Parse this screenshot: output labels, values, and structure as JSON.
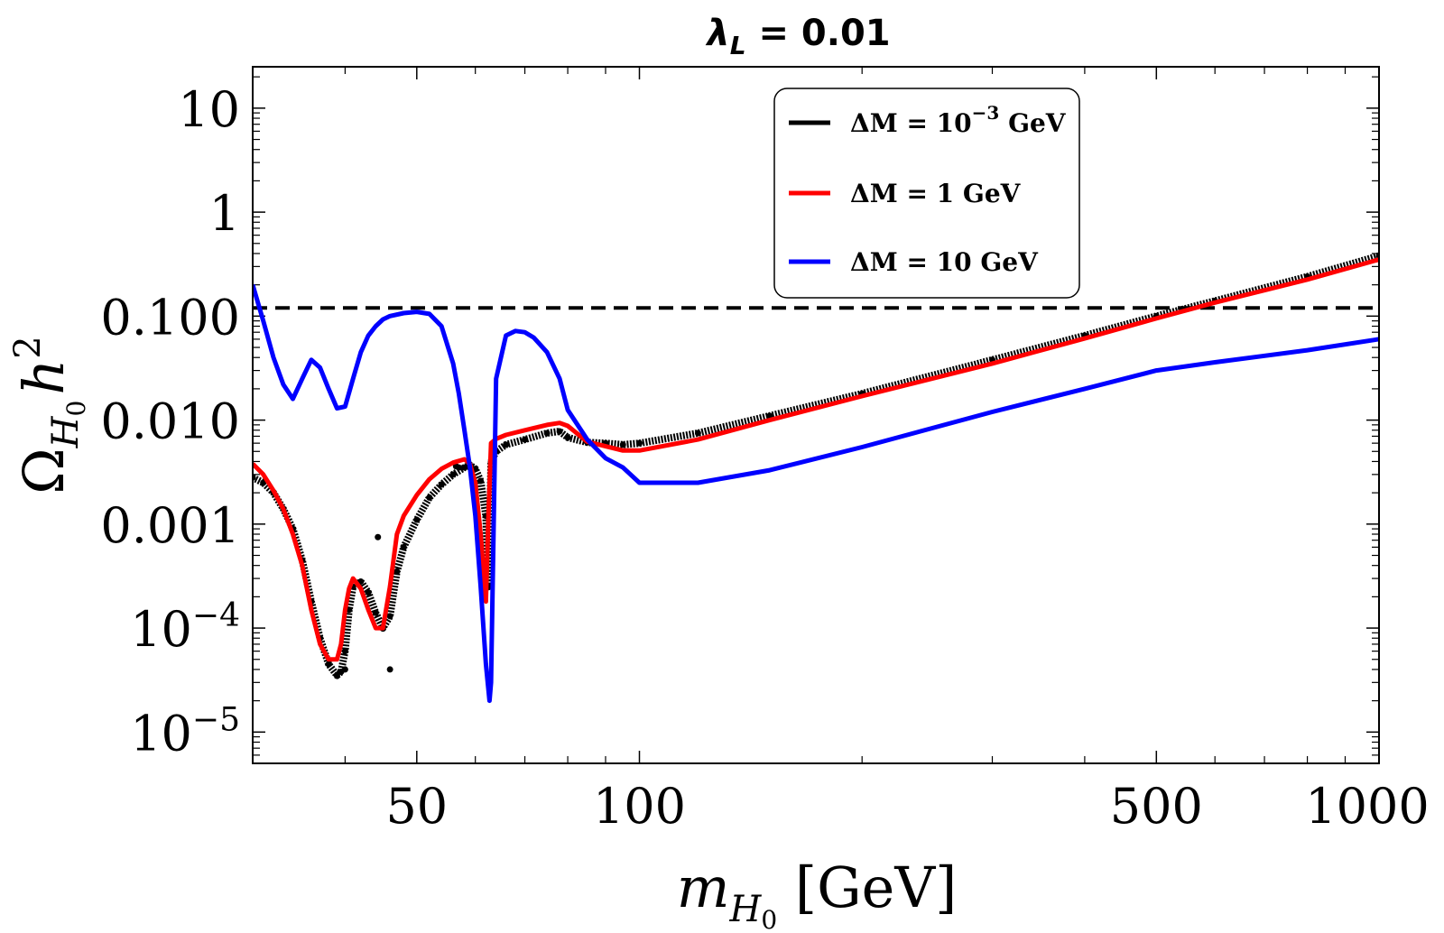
{
  "chart_data": {
    "type": "line",
    "title": {
      "symbol": "λ",
      "subscript": "L",
      "rest": " = 0.01"
    },
    "xlabel": {
      "symbol": "m",
      "subscript": "H",
      "subsub": "0",
      "unit": " [GeV]"
    },
    "ylabel": {
      "symbol": "Ω",
      "subscript": "H",
      "subsub": "0",
      "h": "h",
      "power": "2"
    },
    "xscale": "log",
    "yscale": "log",
    "xlim": [
      30,
      1000
    ],
    "ylim": [
      5e-06,
      25
    ],
    "x_ticks": [
      {
        "value": 50,
        "label": "50"
      },
      {
        "value": 100,
        "label": "100"
      },
      {
        "value": 500,
        "label": "500"
      },
      {
        "value": 1000,
        "label": "1000"
      }
    ],
    "y_ticks": [
      {
        "value": 1e-05,
        "label_base": "10",
        "label_exp": "−5"
      },
      {
        "value": 0.0001,
        "label_base": "10",
        "label_exp": "−4"
      },
      {
        "value": 0.001,
        "label": "0.001"
      },
      {
        "value": 0.01,
        "label": "0.010"
      },
      {
        "value": 0.1,
        "label": "0.100"
      },
      {
        "value": 1,
        "label": "1"
      },
      {
        "value": 10,
        "label": "10"
      }
    ],
    "reference_line": {
      "name": "relic-density",
      "y": 0.12,
      "style": "dashed",
      "color": "#000000"
    },
    "legend": {
      "position": "top-right",
      "entries": [
        {
          "series": "dm-1e-3",
          "prefix": "ΔM = 10",
          "sup": "−3",
          "suffix": " GeV",
          "color": "#000000"
        },
        {
          "series": "dm-1",
          "prefix": "ΔM = 1 GeV",
          "sup": "",
          "suffix": "",
          "color": "#ff0000"
        },
        {
          "series": "dm-10",
          "prefix": "ΔM = 10 GeV",
          "sup": "",
          "suffix": "",
          "color": "#0000ff"
        }
      ]
    },
    "series": [
      {
        "name": "dm-1e-3",
        "color": "#000000",
        "style": "points-dense",
        "x": [
          30,
          31,
          32,
          33,
          34,
          35,
          36,
          37,
          38,
          39,
          39.5,
          40,
          40.5,
          41,
          42,
          43,
          44,
          45,
          46,
          47,
          48,
          50,
          52,
          54,
          56,
          58,
          59,
          60,
          61,
          62,
          62.5,
          63,
          64,
          66,
          70,
          75,
          78,
          80,
          85,
          90,
          95,
          100,
          120,
          150,
          200,
          300,
          400,
          500,
          600,
          800,
          1000
        ],
        "values": [
          0.0028,
          0.0025,
          0.002,
          0.0014,
          0.0009,
          0.00045,
          0.00018,
          8e-05,
          4.5e-05,
          3.5e-05,
          3.8e-05,
          6e-05,
          0.00015,
          0.00025,
          0.00028,
          0.00022,
          0.00014,
          0.0001,
          0.00013,
          0.00035,
          0.0006,
          0.0011,
          0.0018,
          0.0024,
          0.003,
          0.0035,
          0.0037,
          0.0034,
          0.0026,
          0.0012,
          0.00025,
          0.004,
          0.005,
          0.0058,
          0.0065,
          0.0075,
          0.0078,
          0.0068,
          0.0061,
          0.006,
          0.0058,
          0.006,
          0.0075,
          0.011,
          0.018,
          0.038,
          0.065,
          0.1,
          0.14,
          0.24,
          0.38
        ]
      },
      {
        "name": "dm-1e-3-scatter",
        "color": "#000000",
        "style": "points",
        "x": [
          44.3,
          46,
          40,
          56.5,
          57
        ],
        "values": [
          0.00075,
          4e-05,
          4e-05,
          0.0036,
          0.0035
        ]
      },
      {
        "name": "dm-1",
        "color": "#ff0000",
        "style": "line",
        "x": [
          30,
          31,
          32,
          33,
          34,
          35,
          36,
          37,
          38,
          39,
          39.5,
          40,
          40.5,
          41,
          42,
          43,
          44,
          45,
          46,
          47,
          48,
          50,
          52,
          54,
          56,
          58,
          59,
          60,
          61,
          62,
          62.5,
          63,
          64,
          66,
          70,
          75,
          78,
          80,
          85,
          90,
          95,
          100,
          120,
          150,
          200,
          300,
          400,
          500,
          600,
          800,
          1000
        ],
        "values": [
          0.0038,
          0.003,
          0.0021,
          0.0014,
          0.0008,
          0.0004,
          0.00015,
          7e-05,
          5e-05,
          5e-05,
          7e-05,
          0.00015,
          0.00024,
          0.0003,
          0.00024,
          0.00015,
          0.0001,
          0.0001,
          0.00025,
          0.0008,
          0.0012,
          0.0019,
          0.0027,
          0.0034,
          0.0039,
          0.0042,
          0.0038,
          0.0025,
          0.0008,
          0.00018,
          0.0012,
          0.006,
          0.0066,
          0.0072,
          0.008,
          0.009,
          0.0094,
          0.0088,
          0.0062,
          0.0056,
          0.0051,
          0.0051,
          0.0065,
          0.01,
          0.017,
          0.035,
          0.061,
          0.095,
          0.135,
          0.225,
          0.35
        ]
      },
      {
        "name": "dm-10",
        "color": "#0000ff",
        "style": "line",
        "x": [
          30,
          31,
          32,
          33,
          34,
          35,
          36,
          37,
          38,
          39,
          40,
          41,
          42,
          43,
          44,
          45,
          46,
          48,
          50,
          52,
          54,
          56,
          57,
          58,
          59,
          60,
          61,
          62,
          62.7,
          63,
          64,
          66,
          68,
          70,
          72,
          75,
          78,
          80,
          85,
          90,
          95,
          100,
          120,
          150,
          200,
          300,
          400,
          500,
          600,
          800,
          1000
        ],
        "values": [
          0.2,
          0.09,
          0.04,
          0.022,
          0.016,
          0.025,
          0.038,
          0.032,
          0.02,
          0.013,
          0.0135,
          0.025,
          0.045,
          0.065,
          0.08,
          0.093,
          0.1,
          0.107,
          0.11,
          0.105,
          0.08,
          0.035,
          0.018,
          0.008,
          0.0035,
          0.0012,
          0.00025,
          4.5e-05,
          2e-05,
          3e-05,
          0.025,
          0.065,
          0.072,
          0.07,
          0.062,
          0.045,
          0.025,
          0.0125,
          0.0065,
          0.0043,
          0.0035,
          0.0025,
          0.0025,
          0.0033,
          0.0055,
          0.012,
          0.02,
          0.03,
          0.036,
          0.047,
          0.06
        ]
      }
    ]
  }
}
